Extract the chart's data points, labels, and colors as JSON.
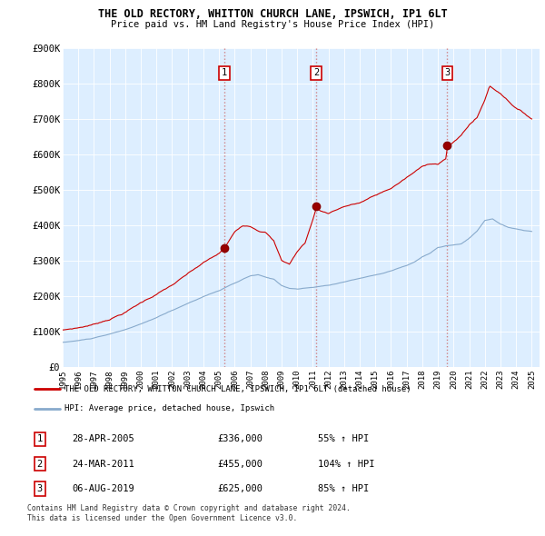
{
  "title": "THE OLD RECTORY, WHITTON CHURCH LANE, IPSWICH, IP1 6LT",
  "subtitle": "Price paid vs. HM Land Registry's House Price Index (HPI)",
  "legend_line1": "THE OLD RECTORY, WHITTON CHURCH LANE, IPSWICH, IP1 6LT (detached house)",
  "legend_line2": "HPI: Average price, detached house, Ipswich",
  "footer1": "Contains HM Land Registry data © Crown copyright and database right 2024.",
  "footer2": "This data is licensed under the Open Government Licence v3.0.",
  "sale_markers": [
    {
      "num": 1,
      "date": "28-APR-2005",
      "price": "£336,000",
      "pct": "55% ↑ HPI",
      "year": 2005.33,
      "price_val": 336000
    },
    {
      "num": 2,
      "date": "24-MAR-2011",
      "price": "£455,000",
      "pct": "104% ↑ HPI",
      "year": 2011.22,
      "price_val": 455000
    },
    {
      "num": 3,
      "date": "06-AUG-2019",
      "price": "£625,000",
      "pct": "85% ↑ HPI",
      "year": 2019.6,
      "price_val": 625000
    }
  ],
  "property_color": "#cc0000",
  "hpi_color": "#88aacc",
  "background_chart": "#ddeeff",
  "grid_color": "#cccccc",
  "marker_dashed_color": "#cc8888",
  "ylim": [
    0,
    900000
  ],
  "xlim_start": 1995,
  "xlim_end": 2025.5,
  "yticks": [
    0,
    100000,
    200000,
    300000,
    400000,
    500000,
    600000,
    700000,
    800000,
    900000
  ],
  "ytick_labels": [
    "£0",
    "£100K",
    "£200K",
    "£300K",
    "£400K",
    "£500K",
    "£600K",
    "£700K",
    "£800K",
    "£900K"
  ],
  "xticks": [
    1995,
    1996,
    1997,
    1998,
    1999,
    2000,
    2001,
    2002,
    2003,
    2004,
    2005,
    2006,
    2007,
    2008,
    2009,
    2010,
    2011,
    2012,
    2013,
    2014,
    2015,
    2016,
    2017,
    2018,
    2019,
    2020,
    2021,
    2022,
    2023,
    2024,
    2025
  ]
}
